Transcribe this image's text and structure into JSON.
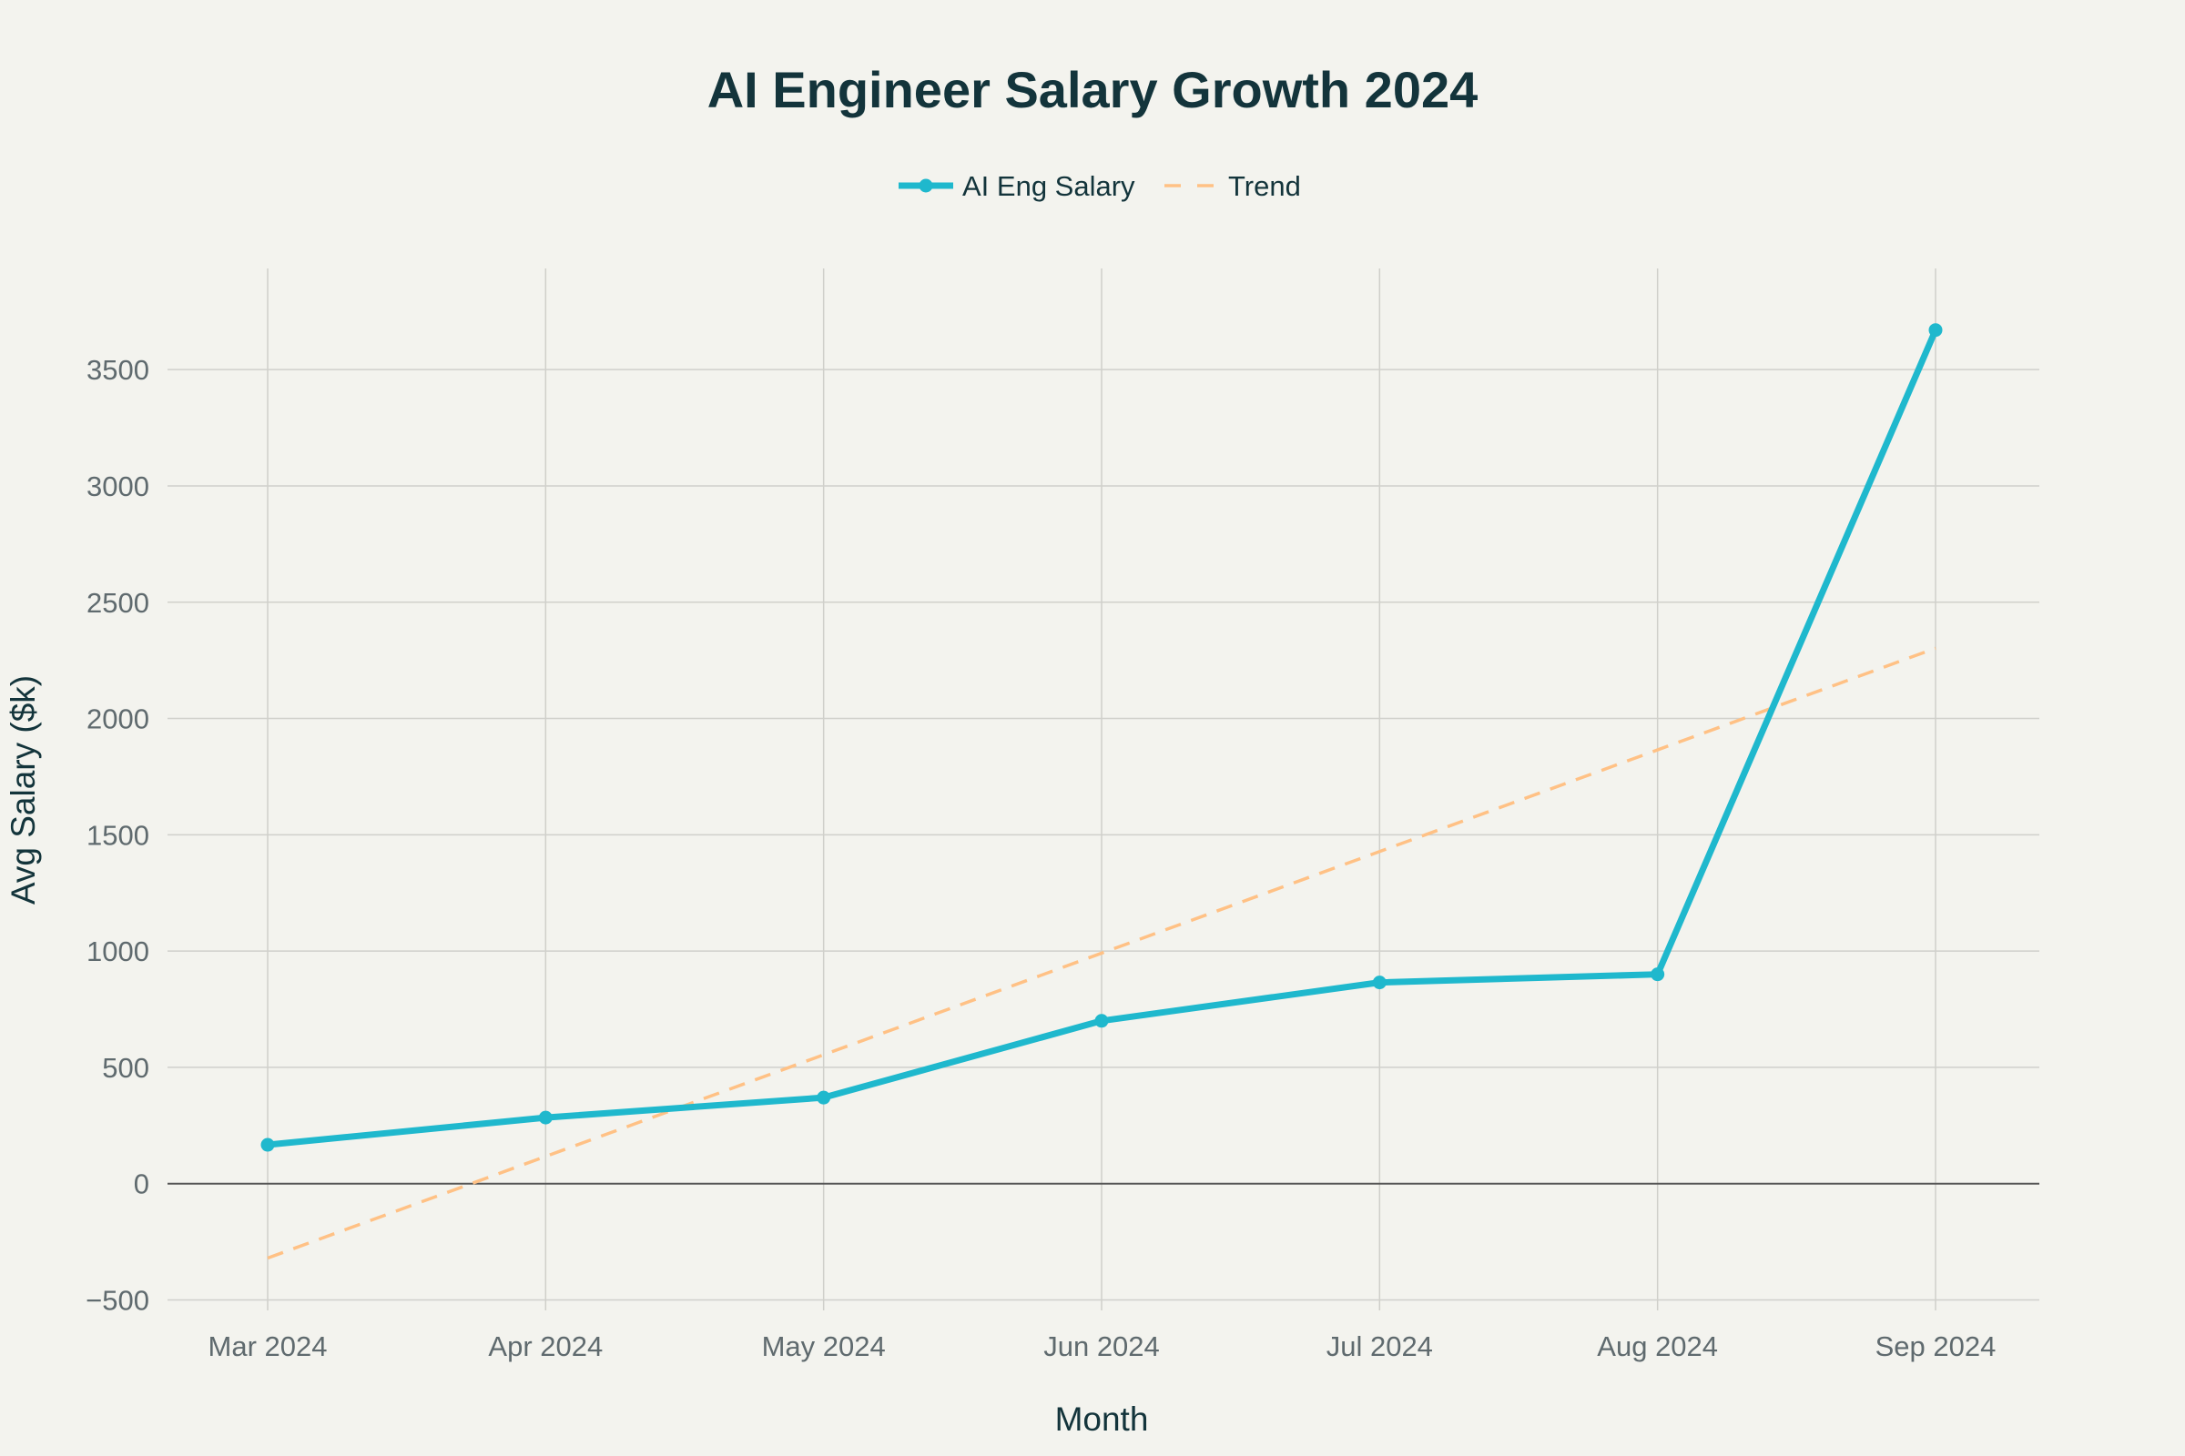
{
  "chart_data": {
    "type": "line",
    "title": "AI Engineer Salary Growth 2024",
    "xlabel": "Month",
    "ylabel": "Avg Salary ($k)",
    "categories": [
      "Mar 2024",
      "Apr 2024",
      "May 2024",
      "Jun 2024",
      "Jul 2024",
      "Aug 2024",
      "Sep 2024"
    ],
    "yticks": [
      -500,
      0,
      500,
      1000,
      1500,
      2000,
      2500,
      3000,
      3500
    ],
    "ytick_labels": [
      "−500",
      "0",
      "500",
      "1000",
      "1500",
      "2000",
      "2500",
      "3000",
      "3500"
    ],
    "ylim": [
      -545,
      3935
    ],
    "grid": true,
    "legend_position": "top-center",
    "series": [
      {
        "name": "AI Eng Salary",
        "values": [
          167,
          284,
          370,
          700,
          865,
          900,
          3670
        ],
        "color": "#1fb8cd",
        "style": "solid-markers"
      },
      {
        "name": "Trend",
        "values": [
          -320,
          117,
          554,
          991,
          1428,
          1865,
          2302
        ],
        "color": "#ffc185",
        "style": "dashed"
      }
    ]
  }
}
